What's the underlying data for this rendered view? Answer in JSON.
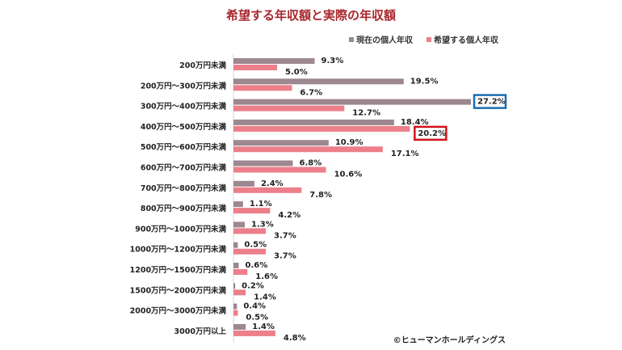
{
  "chart_data": {
    "type": "bar",
    "orientation": "horizontal",
    "title": "希望する年収額と実際の年収額",
    "categories": [
      "200万円未満",
      "200万円～300万円未満",
      "300万円～400万円未満",
      "400万円～500万円未満",
      "500万円～600万円未満",
      "600万円～700万円未満",
      "700万円～800万円未満",
      "800万円～900万円未満",
      "900万円～1000万円未満",
      "1000万円～1200万円未満",
      "1200万円～1500万円未満",
      "1500万円～2000万円未満",
      "2000万円～3000万円未満",
      "3000万円以上"
    ],
    "series": [
      {
        "name": "現在の個人年収",
        "color": "#9d8791",
        "values": [
          9.3,
          19.5,
          27.2,
          18.4,
          10.9,
          6.8,
          2.4,
          1.1,
          1.3,
          0.5,
          0.6,
          0.2,
          0.4,
          1.4
        ],
        "labels": [
          "9.3%",
          "19.5%",
          "27.2%",
          "18.4%",
          "10.9%",
          "6.8%",
          "2.4%",
          "1.1%",
          "1.3%",
          "0.5%",
          "0.6%",
          "0.2%",
          "0.4%",
          "1.4%"
        ]
      },
      {
        "name": "希望する個人年収",
        "color": "#ec7f89",
        "values": [
          5.0,
          6.7,
          12.7,
          20.2,
          17.1,
          10.6,
          7.8,
          4.2,
          3.7,
          3.7,
          1.6,
          1.4,
          0.5,
          4.8
        ],
        "labels": [
          "5.0%",
          "6.7%",
          "12.7%",
          "20.2%",
          "17.1%",
          "10.6%",
          "7.8%",
          "4.2%",
          "3.7%",
          "3.7%",
          "1.6%",
          "1.4%",
          "0.5%",
          "4.8%"
        ]
      }
    ],
    "xlim": [
      0,
      27.2
    ],
    "grid": false,
    "legend": "top-right",
    "highlights": [
      {
        "series": 0,
        "category": 2,
        "color": "#1b6db3"
      },
      {
        "series": 1,
        "category": 3,
        "color": "#d0121b"
      }
    ],
    "annotation": "©ヒューマンホールディングス"
  }
}
